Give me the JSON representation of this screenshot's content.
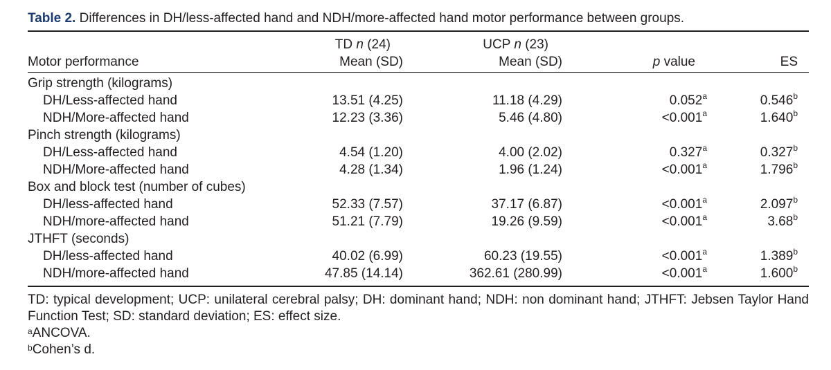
{
  "caption": {
    "label": "Table 2.",
    "text": "Differences in DH/less-affected hand and NDH/more-affected hand motor performance between groups."
  },
  "header": {
    "label_col": "Motor performance",
    "td_group": "TD",
    "td_n": "n",
    "td_count": "(24)",
    "td_stat": "Mean (SD)",
    "ucp_group": "UCP",
    "ucp_n": "n",
    "ucp_count": "(23)",
    "ucp_stat": "Mean (SD)",
    "p_label": "p",
    "p_suffix": "value",
    "es_label": "ES"
  },
  "rows": [
    {
      "label": "Grip strength (kilograms)",
      "type": "group"
    },
    {
      "label": "DH/Less-affected hand",
      "type": "data",
      "td": "13.51 (4.25)",
      "ucp": "11.18 (4.29)",
      "p": "0.052",
      "p_mark": "a",
      "es": "0.546",
      "es_mark": "b"
    },
    {
      "label": "NDH/More-affected hand",
      "type": "data",
      "td": "12.23 (3.36)",
      "ucp": "5.46 (4.80)",
      "p": "<0.001",
      "p_mark": "a",
      "es": "1.640",
      "es_mark": "b"
    },
    {
      "label": "Pinch strength (kilograms)",
      "type": "group"
    },
    {
      "label": "DH/Less-affected hand",
      "type": "data",
      "td": "4.54 (1.20)",
      "ucp": "4.00 (2.02)",
      "p": "0.327",
      "p_mark": "a",
      "es": "0.327",
      "es_mark": "b"
    },
    {
      "label": "NDH/More-affected hand",
      "type": "data",
      "td": "4.28 (1.34)",
      "ucp": "1.96 (1.24)",
      "p": "<0.001",
      "p_mark": "a",
      "es": "1.796",
      "es_mark": "b"
    },
    {
      "label": "Box and block test (number of cubes)",
      "type": "group"
    },
    {
      "label": "DH/less-affected hand",
      "type": "data",
      "td": "52.33 (7.57)",
      "ucp": "37.17 (6.87)",
      "p": "<0.001",
      "p_mark": "a",
      "es": "2.097",
      "es_mark": "b"
    },
    {
      "label": "NDH/more-affected hand",
      "type": "data",
      "td": "51.21 (7.79)",
      "ucp": "19.26 (9.59)",
      "p": "<0.001",
      "p_mark": "a",
      "es": "3.68",
      "es_mark": "b"
    },
    {
      "label": "JTHFT (seconds)",
      "type": "group"
    },
    {
      "label": "DH/less-affected hand",
      "type": "data",
      "td": "40.02 (6.99)",
      "ucp": "60.23 (19.55)",
      "p": "<0.001",
      "p_mark": "a",
      "es": "1.389",
      "es_mark": "b"
    },
    {
      "label": "NDH/more-affected hand",
      "type": "data",
      "td": "47.85 (14.14)",
      "ucp": "362.61 (280.99)",
      "p": "<0.001",
      "p_mark": "a",
      "es": "1.600",
      "es_mark": "b"
    }
  ],
  "footnotes": {
    "abbreviations": "TD: typical development; UCP: unilateral cerebral palsy; DH: dominant hand; NDH: non dominant hand; JTHFT: Jebsen Taylor Hand Function Test; SD: standard deviation; ES: effect size.",
    "note_a_mark": "a",
    "note_a_text": "ANCOVA.",
    "note_b_mark": "b",
    "note_b_text": "Cohen’s d."
  },
  "colors": {
    "caption_label": "#1d3b6e",
    "text": "#231f20"
  }
}
